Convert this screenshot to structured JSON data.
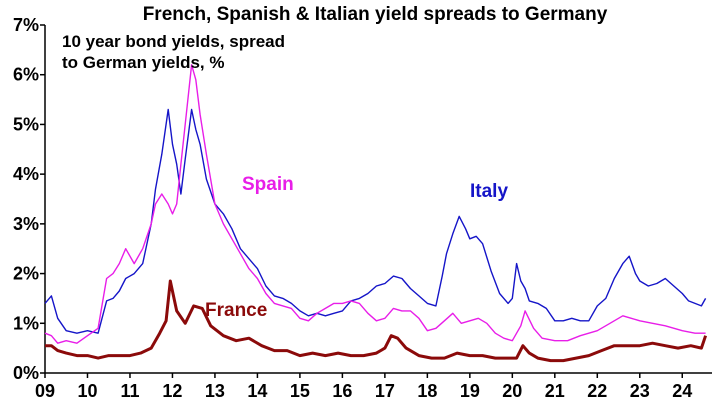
{
  "chart_data": {
    "type": "line",
    "title": "French, Spanish & Italian yield spreads to Germany",
    "annotation": [
      "10 year bond yields, spread",
      "to German yields, %"
    ],
    "ylim": [
      0,
      7
    ],
    "yticks": [
      {
        "value": 0,
        "label": "0%"
      },
      {
        "value": 1,
        "label": "1%"
      },
      {
        "value": 2,
        "label": "2%"
      },
      {
        "value": 3,
        "label": "3%"
      },
      {
        "value": 4,
        "label": "4%"
      },
      {
        "value": 5,
        "label": "5%"
      },
      {
        "value": 6,
        "label": "6%"
      },
      {
        "value": 7,
        "label": "7%"
      }
    ],
    "xlim": [
      2009,
      2024.7
    ],
    "xticks": [
      {
        "value": 2009,
        "label": "09"
      },
      {
        "value": 2010,
        "label": "10"
      },
      {
        "value": 2011,
        "label": "11"
      },
      {
        "value": 2012,
        "label": "12"
      },
      {
        "value": 2013,
        "label": "13"
      },
      {
        "value": 2014,
        "label": "14"
      },
      {
        "value": 2015,
        "label": "15"
      },
      {
        "value": 2016,
        "label": "16"
      },
      {
        "value": 2017,
        "label": "17"
      },
      {
        "value": 2018,
        "label": "18"
      },
      {
        "value": 2019,
        "label": "19"
      },
      {
        "value": 2020,
        "label": "20"
      },
      {
        "value": 2021,
        "label": "21"
      },
      {
        "value": 2022,
        "label": "22"
      },
      {
        "value": 2023,
        "label": "23"
      },
      {
        "value": 2024,
        "label": "24"
      }
    ],
    "series": [
      {
        "name": "Italy",
        "color": "#1515c8",
        "x": [
          2009.0,
          2009.15,
          2009.3,
          2009.5,
          2009.75,
          2010.0,
          2010.25,
          2010.45,
          2010.6,
          2010.75,
          2010.9,
          2011.1,
          2011.3,
          2011.5,
          2011.6,
          2011.75,
          2011.9,
          2012.0,
          2012.1,
          2012.2,
          2012.3,
          2012.45,
          2012.55,
          2012.65,
          2012.8,
          2013.0,
          2013.2,
          2013.4,
          2013.6,
          2013.8,
          2014.0,
          2014.2,
          2014.4,
          2014.6,
          2014.8,
          2015.0,
          2015.2,
          2015.4,
          2015.6,
          2015.8,
          2016.0,
          2016.2,
          2016.4,
          2016.6,
          2016.8,
          2017.0,
          2017.2,
          2017.4,
          2017.6,
          2017.8,
          2018.0,
          2018.2,
          2018.35,
          2018.45,
          2018.6,
          2018.75,
          2018.9,
          2019.0,
          2019.15,
          2019.3,
          2019.5,
          2019.7,
          2019.9,
          2020.0,
          2020.1,
          2020.2,
          2020.3,
          2020.4,
          2020.6,
          2020.8,
          2021.0,
          2021.2,
          2021.4,
          2021.6,
          2021.8,
          2022.0,
          2022.2,
          2022.4,
          2022.6,
          2022.75,
          2022.9,
          2023.0,
          2023.2,
          2023.4,
          2023.6,
          2023.8,
          2024.0,
          2024.15,
          2024.3,
          2024.45,
          2024.55
        ],
        "values": [
          1.4,
          1.55,
          1.1,
          0.85,
          0.8,
          0.85,
          0.8,
          1.45,
          1.5,
          1.65,
          1.9,
          2.0,
          2.2,
          3.0,
          3.7,
          4.4,
          5.3,
          4.6,
          4.2,
          3.6,
          4.3,
          5.3,
          4.9,
          4.6,
          3.9,
          3.4,
          3.2,
          2.9,
          2.5,
          2.3,
          2.1,
          1.75,
          1.55,
          1.5,
          1.4,
          1.25,
          1.15,
          1.2,
          1.15,
          1.2,
          1.25,
          1.45,
          1.5,
          1.6,
          1.75,
          1.8,
          1.95,
          1.9,
          1.7,
          1.55,
          1.4,
          1.35,
          1.95,
          2.4,
          2.8,
          3.15,
          2.9,
          2.7,
          2.75,
          2.6,
          2.05,
          1.6,
          1.4,
          1.5,
          2.2,
          1.85,
          1.7,
          1.45,
          1.4,
          1.3,
          1.05,
          1.05,
          1.1,
          1.05,
          1.05,
          1.35,
          1.5,
          1.9,
          2.2,
          2.35,
          2.0,
          1.85,
          1.75,
          1.8,
          1.9,
          1.75,
          1.6,
          1.45,
          1.4,
          1.35,
          1.5
        ]
      },
      {
        "name": "Spain",
        "color": "#e81ee8",
        "x": [
          2009.0,
          2009.15,
          2009.3,
          2009.5,
          2009.75,
          2010.0,
          2010.25,
          2010.45,
          2010.6,
          2010.75,
          2010.9,
          2011.1,
          2011.3,
          2011.5,
          2011.6,
          2011.75,
          2011.9,
          2012.0,
          2012.1,
          2012.2,
          2012.3,
          2012.45,
          2012.55,
          2012.65,
          2012.8,
          2013.0,
          2013.2,
          2013.4,
          2013.6,
          2013.8,
          2014.0,
          2014.2,
          2014.4,
          2014.6,
          2014.8,
          2015.0,
          2015.2,
          2015.4,
          2015.6,
          2015.8,
          2016.0,
          2016.2,
          2016.4,
          2016.6,
          2016.8,
          2017.0,
          2017.2,
          2017.4,
          2017.6,
          2017.8,
          2018.0,
          2018.2,
          2018.4,
          2018.6,
          2018.8,
          2019.0,
          2019.2,
          2019.4,
          2019.6,
          2019.8,
          2020.0,
          2020.2,
          2020.3,
          2020.5,
          2020.7,
          2021.0,
          2021.3,
          2021.6,
          2022.0,
          2022.3,
          2022.6,
          2022.8,
          2023.0,
          2023.3,
          2023.6,
          2024.0,
          2024.3,
          2024.55
        ],
        "values": [
          0.8,
          0.75,
          0.6,
          0.65,
          0.6,
          0.75,
          0.9,
          1.9,
          2.0,
          2.2,
          2.5,
          2.2,
          2.5,
          3.0,
          3.4,
          3.6,
          3.4,
          3.2,
          3.4,
          4.2,
          5.0,
          6.2,
          5.9,
          5.2,
          4.4,
          3.4,
          3.0,
          2.7,
          2.4,
          2.1,
          1.9,
          1.6,
          1.4,
          1.35,
          1.3,
          1.1,
          1.05,
          1.2,
          1.3,
          1.4,
          1.4,
          1.45,
          1.4,
          1.2,
          1.05,
          1.1,
          1.3,
          1.25,
          1.25,
          1.1,
          0.85,
          0.9,
          1.05,
          1.2,
          1.0,
          1.05,
          1.1,
          1.0,
          0.8,
          0.7,
          0.65,
          0.95,
          1.25,
          0.9,
          0.7,
          0.65,
          0.65,
          0.75,
          0.85,
          1.0,
          1.15,
          1.1,
          1.05,
          1.0,
          0.95,
          0.85,
          0.8,
          0.8
        ]
      },
      {
        "name": "France",
        "color": "#8b0a0a",
        "x": [
          2009.0,
          2009.15,
          2009.3,
          2009.5,
          2009.75,
          2010.0,
          2010.25,
          2010.5,
          2010.75,
          2011.0,
          2011.25,
          2011.5,
          2011.7,
          2011.85,
          2011.95,
          2012.1,
          2012.3,
          2012.5,
          2012.7,
          2012.9,
          2013.2,
          2013.5,
          2013.8,
          2014.1,
          2014.4,
          2014.7,
          2015.0,
          2015.3,
          2015.6,
          2015.9,
          2016.2,
          2016.5,
          2016.8,
          2017.0,
          2017.15,
          2017.3,
          2017.5,
          2017.8,
          2018.1,
          2018.4,
          2018.7,
          2019.0,
          2019.3,
          2019.6,
          2019.9,
          2020.1,
          2020.25,
          2020.4,
          2020.6,
          2020.9,
          2021.2,
          2021.5,
          2021.8,
          2022.1,
          2022.4,
          2022.7,
          2023.0,
          2023.3,
          2023.6,
          2023.9,
          2024.2,
          2024.45,
          2024.55
        ],
        "values": [
          0.55,
          0.55,
          0.45,
          0.4,
          0.35,
          0.35,
          0.3,
          0.35,
          0.35,
          0.35,
          0.4,
          0.5,
          0.8,
          1.05,
          1.85,
          1.25,
          1.0,
          1.35,
          1.3,
          0.95,
          0.75,
          0.65,
          0.7,
          0.55,
          0.45,
          0.45,
          0.35,
          0.4,
          0.35,
          0.4,
          0.35,
          0.35,
          0.4,
          0.5,
          0.75,
          0.7,
          0.5,
          0.35,
          0.3,
          0.3,
          0.4,
          0.35,
          0.35,
          0.3,
          0.3,
          0.3,
          0.55,
          0.4,
          0.3,
          0.25,
          0.25,
          0.3,
          0.35,
          0.45,
          0.55,
          0.55,
          0.55,
          0.6,
          0.55,
          0.5,
          0.55,
          0.5,
          0.75
        ]
      }
    ],
    "series_labels": [
      {
        "text": "Spain",
        "color": "#e81ee8"
      },
      {
        "text": "Italy",
        "color": "#1515c8"
      },
      {
        "text": "France",
        "color": "#8b0a0a"
      }
    ]
  }
}
